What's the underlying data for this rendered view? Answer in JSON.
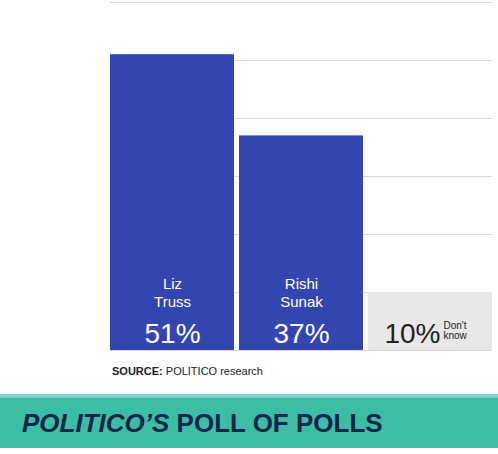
{
  "chart_data": {
    "type": "bar",
    "title": "POLITICO’S POLL OF POLLS",
    "source": "SOURCE: POLITICO research",
    "categories": [
      "Liz Truss",
      "Rishi Sunak",
      "Don't know"
    ],
    "values": [
      51,
      37,
      10
    ],
    "value_labels": [
      "51%",
      "37%",
      "10%"
    ],
    "colors": [
      "#3346b0",
      "#3346b0",
      "#e8e8e8"
    ],
    "ylim": [
      0,
      60
    ],
    "yticks": [
      0,
      10,
      20,
      30,
      40,
      50,
      60
    ],
    "grid": true,
    "data_labels": true,
    "tick_labels": false
  }
}
